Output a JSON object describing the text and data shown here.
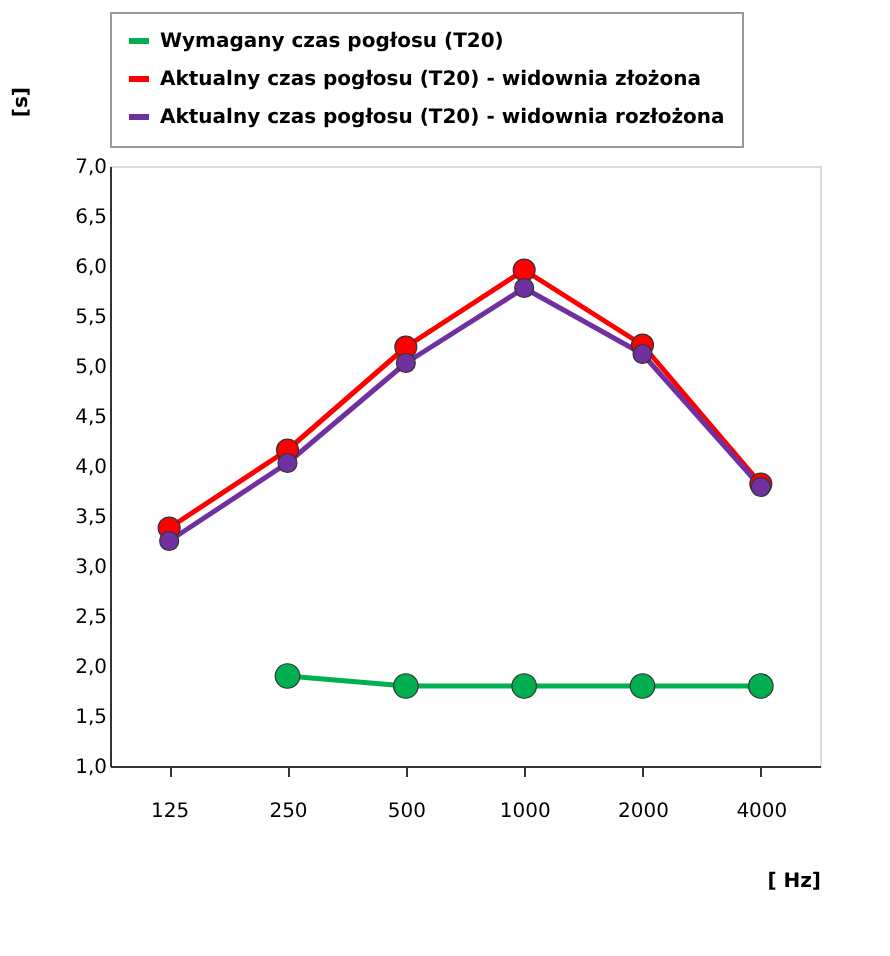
{
  "chart_data": {
    "type": "line",
    "xlabel": "[ Hz]",
    "ylabel": "[s]",
    "categories": [
      "125",
      "250",
      "500",
      "1000",
      "2000",
      "4000"
    ],
    "series": [
      {
        "name": "Wymagany czas pogłosu (T20)",
        "color": "#00b050",
        "values": [
          null,
          1.9,
          1.8,
          1.8,
          1.8,
          1.8
        ]
      },
      {
        "name": "Aktualny czas pogłosu (T20) - widownia złożona",
        "color": "#ff0000",
        "values": [
          3.38,
          4.16,
          5.19,
          5.96,
          5.21,
          3.82
        ]
      },
      {
        "name": "Aktualny czas pogłosu (T20) - widownia rozłożona",
        "color": "#7030a0",
        "values": [
          3.25,
          4.03,
          5.03,
          5.78,
          5.12,
          3.79
        ]
      }
    ],
    "ylim": [
      1.0,
      7.0
    ],
    "yticks": [
      {
        "value": 1.0,
        "label": "1,0"
      },
      {
        "value": 1.5,
        "label": "1,5"
      },
      {
        "value": 2.0,
        "label": "2,0"
      },
      {
        "value": 2.5,
        "label": "2,5"
      },
      {
        "value": 3.0,
        "label": "3,0"
      },
      {
        "value": 3.5,
        "label": "3,5"
      },
      {
        "value": 4.0,
        "label": "4,0"
      },
      {
        "value": 4.5,
        "label": "4,5"
      },
      {
        "value": 5.0,
        "label": "5,0"
      },
      {
        "value": 5.5,
        "label": "5,5"
      },
      {
        "value": 6.0,
        "label": "6,0"
      },
      {
        "value": 6.5,
        "label": "6,5"
      },
      {
        "value": 7.0,
        "label": "7,0"
      }
    ],
    "grid": false,
    "legend": "top",
    "marker": "circle",
    "line_style": "solid"
  }
}
